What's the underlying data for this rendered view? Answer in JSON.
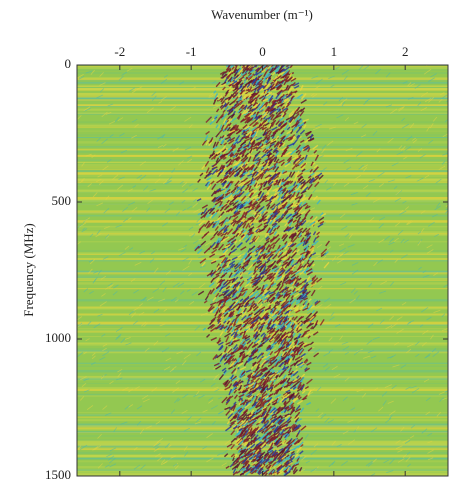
{
  "chart_data": {
    "type": "image",
    "xlabel": "Wavenumber (m⁻¹)",
    "ylabel": "Frequency (MHz)",
    "xlim": [
      -2.6,
      2.6
    ],
    "xticks": [
      -2,
      -1,
      0,
      1,
      2
    ],
    "ylim": [
      0,
      1500
    ],
    "yticks": [
      0,
      500,
      1000,
      1500
    ],
    "y_reversed": true,
    "x_axis_position": "top"
  }
}
